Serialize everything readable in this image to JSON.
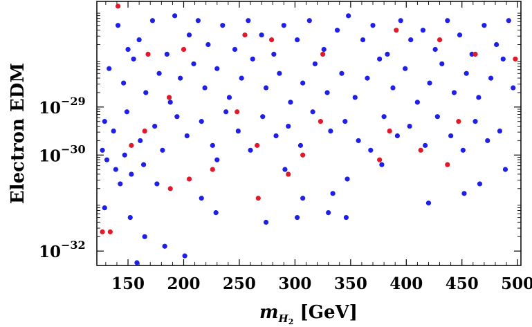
{
  "chart_data": {
    "type": "scatter",
    "title": "",
    "xlabel": {
      "base": "m",
      "sub1": "H",
      "sub2": "2",
      "unit": " [GeV]"
    },
    "ylabel": "Electron EDM",
    "xlim": [
      122,
      503
    ],
    "ylog": true,
    "ylim_exp": [
      -32.3,
      -26.8
    ],
    "xticks": [
      150,
      200,
      250,
      300,
      350,
      400,
      450,
      500
    ],
    "xtick_labels": [
      "150",
      "200",
      "250",
      "300",
      "350",
      "400",
      "450",
      "500"
    ],
    "yticks": [
      {
        "exp": -29,
        "base": "10",
        "sup": "−29"
      },
      {
        "exp": -30,
        "base": "10",
        "sup": "−30"
      },
      {
        "exp": -32,
        "base": "10",
        "sup": "−32"
      }
    ],
    "colors": {
      "blue": "#1f1fe6",
      "red": "#e01a2a"
    },
    "series": [
      {
        "color_key": "blue",
        "points": [
          [
            141,
            -27.3
          ],
          [
            150,
            -27.8
          ],
          [
            160,
            -27.6
          ],
          [
            172,
            -27.2
          ],
          [
            185,
            -27.9
          ],
          [
            192,
            -27.1
          ],
          [
            205,
            -27.5
          ],
          [
            213,
            -27.2
          ],
          [
            222,
            -27.7
          ],
          [
            235,
            -27.3
          ],
          [
            246,
            -27.8
          ],
          [
            258,
            -27.2
          ],
          [
            270,
            -27.5
          ],
          [
            281,
            -27.9
          ],
          [
            290,
            -27.3
          ],
          [
            302,
            -27.6
          ],
          [
            313,
            -27.2
          ],
          [
            326,
            -27.8
          ],
          [
            338,
            -27.4
          ],
          [
            348,
            -27.1
          ],
          [
            361,
            -27.6
          ],
          [
            370,
            -27.3
          ],
          [
            383,
            -27.9
          ],
          [
            395,
            -27.2
          ],
          [
            404,
            -27.6
          ],
          [
            415,
            -27.4
          ],
          [
            426,
            -27.8
          ],
          [
            437,
            -27.2
          ],
          [
            448,
            -27.5
          ],
          [
            459,
            -27.9
          ],
          [
            470,
            -27.3
          ],
          [
            481,
            -27.7
          ],
          [
            492,
            -27.2
          ],
          [
            133,
            -28.2
          ],
          [
            146,
            -28.5
          ],
          [
            155,
            -28.0
          ],
          [
            166,
            -28.7
          ],
          [
            178,
            -28.3
          ],
          [
            188,
            -28.9
          ],
          [
            197,
            -28.4
          ],
          [
            209,
            -28.1
          ],
          [
            219,
            -28.6
          ],
          [
            230,
            -28.2
          ],
          [
            241,
            -28.8
          ],
          [
            252,
            -28.4
          ],
          [
            262,
            -28.0
          ],
          [
            274,
            -28.6
          ],
          [
            286,
            -28.3
          ],
          [
            296,
            -28.9
          ],
          [
            307,
            -28.5
          ],
          [
            318,
            -28.1
          ],
          [
            329,
            -28.7
          ],
          [
            342,
            -28.3
          ],
          [
            354,
            -28.8
          ],
          [
            365,
            -28.4
          ],
          [
            376,
            -28.0
          ],
          [
            388,
            -28.6
          ],
          [
            399,
            -28.2
          ],
          [
            410,
            -28.9
          ],
          [
            421,
            -28.5
          ],
          [
            432,
            -28.1
          ],
          [
            443,
            -28.7
          ],
          [
            454,
            -28.3
          ],
          [
            465,
            -28.8
          ],
          [
            476,
            -28.4
          ],
          [
            487,
            -28.0
          ],
          [
            496,
            -28.6
          ],
          [
            129,
            -29.3
          ],
          [
            137,
            -29.5
          ],
          [
            149,
            -29.1
          ],
          [
            161,
            -29.7
          ],
          [
            174,
            -29.4
          ],
          [
            181,
            -29.9
          ],
          [
            194,
            -29.2
          ],
          [
            203,
            -29.6
          ],
          [
            216,
            -29.3
          ],
          [
            226,
            -29.8
          ],
          [
            238,
            -29.1
          ],
          [
            249,
            -29.5
          ],
          [
            260,
            -29.9
          ],
          [
            271,
            -29.2
          ],
          [
            283,
            -29.6
          ],
          [
            294,
            -29.4
          ],
          [
            305,
            -29.8
          ],
          [
            316,
            -29.1
          ],
          [
            332,
            -29.5
          ],
          [
            345,
            -29.3
          ],
          [
            357,
            -29.7
          ],
          [
            368,
            -29.9
          ],
          [
            380,
            -29.2
          ],
          [
            392,
            -29.6
          ],
          [
            403,
            -29.4
          ],
          [
            417,
            -29.8
          ],
          [
            428,
            -29.2
          ],
          [
            440,
            -29.6
          ],
          [
            451,
            -29.9
          ],
          [
            462,
            -29.3
          ],
          [
            473,
            -29.7
          ],
          [
            484,
            -29.5
          ],
          [
            127,
            -29.9
          ],
          [
            131,
            -30.1
          ],
          [
            139,
            -30.3
          ],
          [
            147,
            -30.0
          ],
          [
            153,
            -30.4
          ],
          [
            164,
            -30.2
          ],
          [
            176,
            -30.6
          ],
          [
            230,
            -30.1
          ],
          [
            291,
            -30.3
          ],
          [
            307,
            -30.9
          ],
          [
            334,
            -30.8
          ],
          [
            347,
            -30.5
          ],
          [
            378,
            -30.2
          ],
          [
            489,
            -30.3
          ],
          [
            129,
            -31.1
          ],
          [
            143,
            -30.6
          ],
          [
            152,
            -31.3
          ],
          [
            165,
            -31.7
          ],
          [
            183,
            -31.9
          ],
          [
            201,
            -32.1
          ],
          [
            216,
            -30.9
          ],
          [
            229,
            -31.2
          ],
          [
            274,
            -31.4
          ],
          [
            302,
            -31.3
          ],
          [
            330,
            -31.2
          ],
          [
            346,
            -31.3
          ],
          [
            420,
            -31.0
          ],
          [
            452,
            -30.8
          ],
          [
            466,
            -30.6
          ],
          [
            158,
            -32.4
          ]
        ]
      },
      {
        "color_key": "red",
        "points": [
          [
            141,
            -26.9
          ],
          [
            168,
            -27.9
          ],
          [
            200,
            -27.8
          ],
          [
            255,
            -27.5
          ],
          [
            279,
            -27.6
          ],
          [
            325,
            -27.9
          ],
          [
            391,
            -27.4
          ],
          [
            430,
            -27.6
          ],
          [
            462,
            -27.9
          ],
          [
            498,
            -28.0
          ],
          [
            187,
            -28.8
          ],
          [
            248,
            -29.1
          ],
          [
            323,
            -29.3
          ],
          [
            385,
            -29.5
          ],
          [
            447,
            -29.3
          ],
          [
            153,
            -29.8
          ],
          [
            165,
            -29.5
          ],
          [
            205,
            -30.5
          ],
          [
            226,
            -30.3
          ],
          [
            266,
            -29.8
          ],
          [
            307,
            -30.0
          ],
          [
            376,
            -30.1
          ],
          [
            413,
            -29.9
          ],
          [
            437,
            -30.2
          ],
          [
            127,
            -31.6
          ],
          [
            134,
            -31.6
          ],
          [
            188,
            -30.7
          ],
          [
            267,
            -30.9
          ],
          [
            294,
            -30.4
          ]
        ]
      }
    ]
  }
}
